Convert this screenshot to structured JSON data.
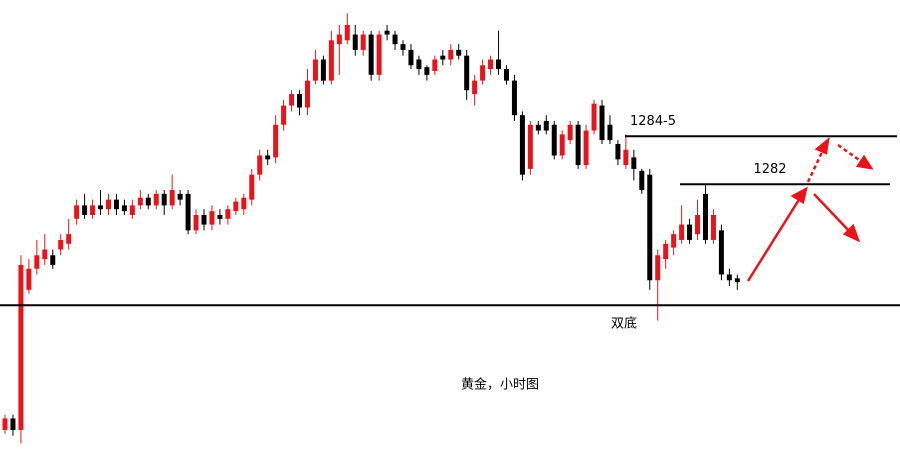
{
  "chart_data": {
    "type": "candlestick",
    "title": "黄金，小时图",
    "ylim": [
      1268,
      1291.6
    ],
    "up_color": "#e8141a",
    "down_color": "#000000",
    "candles": [
      [
        1269.2,
        1270.0,
        1269.0,
        1269.8
      ],
      [
        1269.8,
        1270.0,
        1268.9,
        1269.2
      ],
      [
        1269.2,
        1278.3,
        1268.5,
        1277.8
      ],
      [
        1276.5,
        1278.1,
        1276.3,
        1277.6
      ],
      [
        1277.6,
        1279.1,
        1277.3,
        1278.3
      ],
      [
        1278.1,
        1279.4,
        1277.8,
        1278.6
      ],
      [
        1278.3,
        1278.6,
        1277.6,
        1277.8
      ],
      [
        1278.6,
        1279.4,
        1278.3,
        1279.1
      ],
      [
        1278.9,
        1280.2,
        1278.6,
        1279.4
      ],
      [
        1280.2,
        1281.2,
        1279.9,
        1280.9
      ],
      [
        1280.9,
        1281.5,
        1280.2,
        1280.4
      ],
      [
        1280.4,
        1281.2,
        1280.2,
        1280.9
      ],
      [
        1280.9,
        1281.7,
        1280.4,
        1280.7
      ],
      [
        1280.7,
        1281.5,
        1280.4,
        1281.2
      ],
      [
        1281.2,
        1281.5,
        1280.4,
        1280.7
      ],
      [
        1280.9,
        1281.2,
        1280.4,
        1280.6
      ],
      [
        1280.4,
        1281.2,
        1280.2,
        1280.9
      ],
      [
        1280.9,
        1281.7,
        1280.7,
        1281.3
      ],
      [
        1281.3,
        1281.5,
        1280.7,
        1280.9
      ],
      [
        1280.9,
        1281.7,
        1280.7,
        1281.5
      ],
      [
        1281.5,
        1281.7,
        1280.4,
        1280.9
      ],
      [
        1280.9,
        1282.5,
        1280.7,
        1281.7
      ],
      [
        1281.5,
        1281.7,
        1280.9,
        1281.2
      ],
      [
        1281.5,
        1281.7,
        1279.4,
        1279.6
      ],
      [
        1279.6,
        1280.7,
        1279.4,
        1280.4
      ],
      [
        1280.4,
        1280.7,
        1279.6,
        1279.9
      ],
      [
        1279.9,
        1280.9,
        1279.6,
        1280.6
      ],
      [
        1280.4,
        1280.7,
        1279.9,
        1280.2
      ],
      [
        1280.2,
        1280.9,
        1279.9,
        1280.7
      ],
      [
        1280.6,
        1281.3,
        1280.4,
        1281.1
      ],
      [
        1280.7,
        1281.5,
        1280.4,
        1281.3
      ],
      [
        1281.2,
        1282.8,
        1280.9,
        1282.5
      ],
      [
        1282.5,
        1283.8,
        1282.2,
        1283.5
      ],
      [
        1283.5,
        1283.8,
        1283.0,
        1283.3
      ],
      [
        1283.4,
        1285.6,
        1283.1,
        1285.1
      ],
      [
        1285.1,
        1286.4,
        1284.8,
        1286.1
      ],
      [
        1286.1,
        1286.9,
        1285.8,
        1286.7
      ],
      [
        1286.7,
        1286.9,
        1285.6,
        1286.0
      ],
      [
        1286.0,
        1288.0,
        1285.6,
        1287.4
      ],
      [
        1287.4,
        1289.0,
        1287.2,
        1288.5
      ],
      [
        1288.5,
        1288.7,
        1287.2,
        1287.4
      ],
      [
        1287.4,
        1290.0,
        1287.2,
        1289.5
      ],
      [
        1289.3,
        1290.3,
        1287.7,
        1289.8
      ],
      [
        1289.5,
        1290.9,
        1289.3,
        1290.3
      ],
      [
        1289.8,
        1290.3,
        1288.7,
        1289.0
      ],
      [
        1289.0,
        1290.0,
        1288.7,
        1289.8
      ],
      [
        1289.8,
        1290.0,
        1287.4,
        1287.7
      ],
      [
        1287.7,
        1290.0,
        1287.4,
        1289.8
      ],
      [
        1290.0,
        1290.3,
        1289.5,
        1289.8
      ],
      [
        1289.8,
        1290.0,
        1289.0,
        1289.3
      ],
      [
        1289.3,
        1289.5,
        1288.7,
        1289.0
      ],
      [
        1289.0,
        1289.3,
        1288.0,
        1288.2
      ],
      [
        1288.5,
        1288.7,
        1287.7,
        1288.0
      ],
      [
        1288.1,
        1288.2,
        1287.4,
        1287.7
      ],
      [
        1287.9,
        1288.7,
        1287.7,
        1288.5
      ],
      [
        1288.7,
        1289.0,
        1288.2,
        1288.5
      ],
      [
        1288.5,
        1289.3,
        1288.2,
        1289.0
      ],
      [
        1289.0,
        1289.3,
        1288.5,
        1288.7
      ],
      [
        1288.7,
        1289.0,
        1286.4,
        1286.9
      ],
      [
        1286.7,
        1287.7,
        1286.1,
        1287.4
      ],
      [
        1287.4,
        1288.5,
        1287.2,
        1288.2
      ],
      [
        1288.0,
        1288.7,
        1287.7,
        1288.5
      ],
      [
        1288.5,
        1290.0,
        1287.7,
        1288.0
      ],
      [
        1288.0,
        1288.2,
        1287.2,
        1287.4
      ],
      [
        1287.4,
        1287.7,
        1285.3,
        1285.6
      ],
      [
        1285.6,
        1285.8,
        1282.2,
        1282.5
      ],
      [
        1282.8,
        1285.3,
        1282.5,
        1285.1
      ],
      [
        1285.1,
        1285.3,
        1284.6,
        1284.8
      ],
      [
        1285.3,
        1285.6,
        1284.6,
        1284.8
      ],
      [
        1285.1,
        1285.3,
        1283.3,
        1283.5
      ],
      [
        1283.5,
        1284.8,
        1283.3,
        1284.6
      ],
      [
        1284.3,
        1285.3,
        1284.1,
        1285.1
      ],
      [
        1285.1,
        1285.3,
        1282.8,
        1283.0
      ],
      [
        1283.0,
        1285.1,
        1282.8,
        1284.8
      ],
      [
        1284.8,
        1286.4,
        1284.6,
        1286.2
      ],
      [
        1286.1,
        1286.4,
        1284.1,
        1284.3
      ],
      [
        1285.1,
        1285.6,
        1284.1,
        1284.3
      ],
      [
        1284.1,
        1284.3,
        1283.0,
        1283.3
      ],
      [
        1283.0,
        1284.6,
        1282.8,
        1283.8
      ],
      [
        1283.4,
        1283.8,
        1282.2,
        1282.8
      ],
      [
        1282.7,
        1282.8,
        1281.5,
        1281.7
      ],
      [
        1282.5,
        1282.8,
        1276.5,
        1277.0
      ],
      [
        1277.0,
        1278.6,
        1274.9,
        1278.3
      ],
      [
        1278.1,
        1279.1,
        1277.6,
        1278.9
      ],
      [
        1278.7,
        1279.6,
        1278.3,
        1279.4
      ],
      [
        1279.1,
        1280.9,
        1278.9,
        1279.9
      ],
      [
        1279.9,
        1280.2,
        1278.9,
        1279.1
      ],
      [
        1279.4,
        1281.2,
        1279.1,
        1280.4
      ],
      [
        1281.5,
        1282.0,
        1278.9,
        1279.1
      ],
      [
        1279.1,
        1280.7,
        1278.9,
        1280.4
      ],
      [
        1279.6,
        1279.9,
        1277.0,
        1277.3
      ],
      [
        1277.3,
        1277.6,
        1276.7,
        1277.0
      ],
      [
        1277.1,
        1277.3,
        1276.5,
        1276.9
      ]
    ],
    "levels": [
      {
        "value": 1275.7
      },
      {
        "value": 1284.5,
        "label": "1284-5"
      },
      {
        "value": 1282,
        "label": "1282"
      }
    ],
    "annotations": [
      "双底"
    ]
  }
}
